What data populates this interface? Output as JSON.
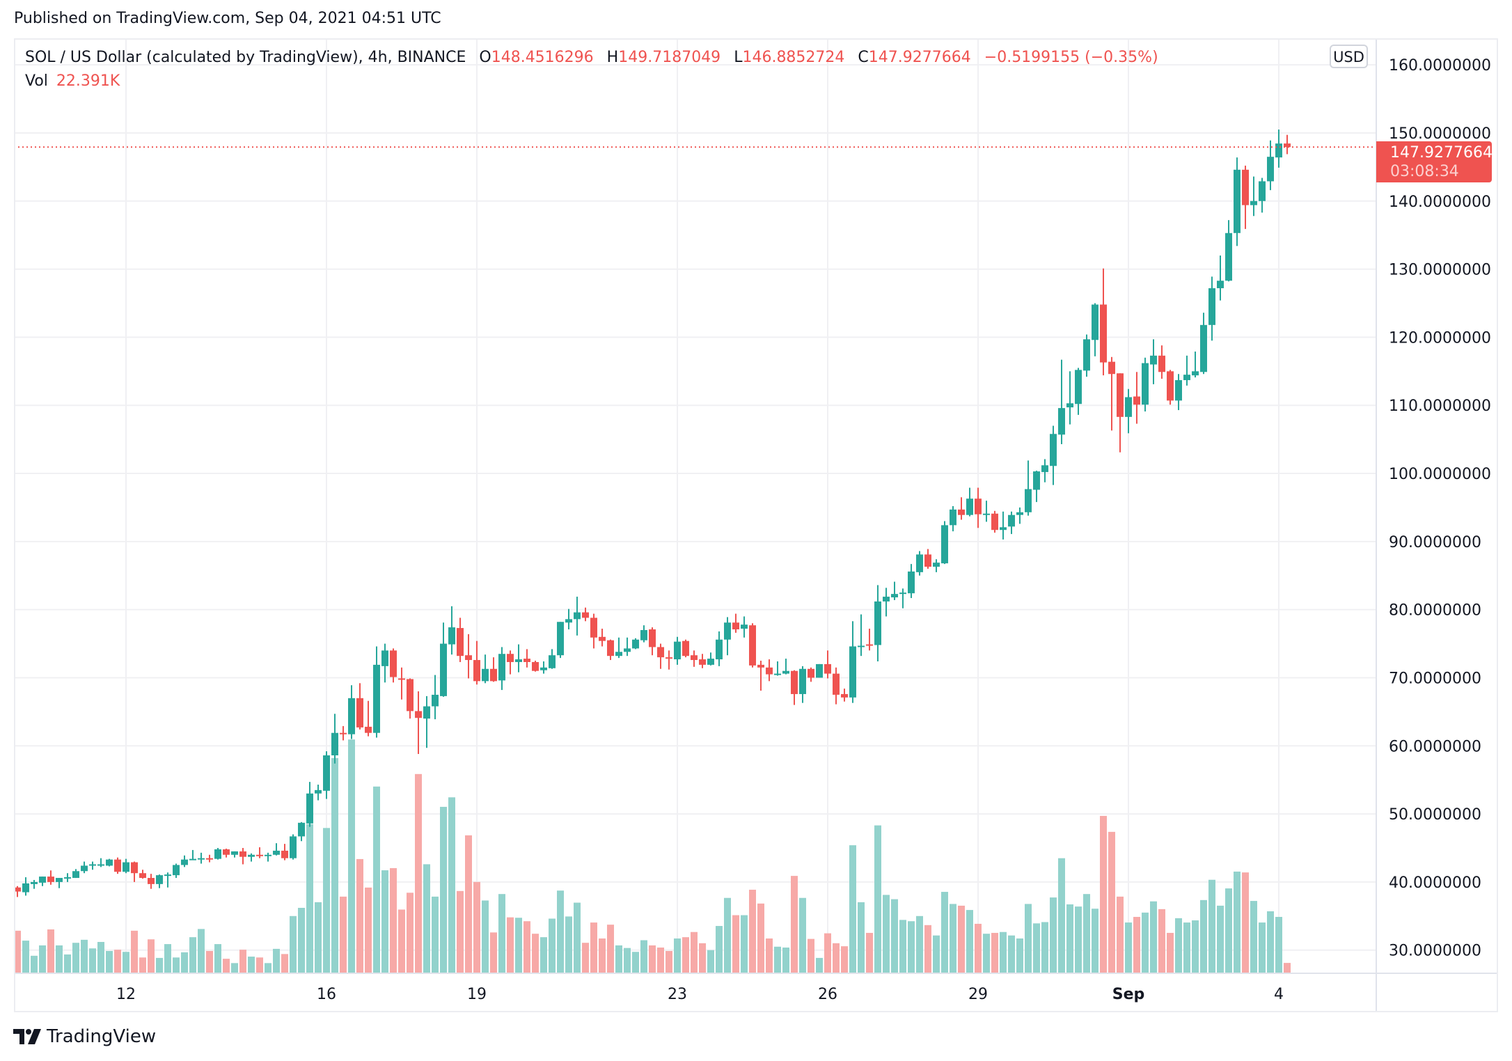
{
  "published": "Published on TradingView.com, Sep 04, 2021 04:51 UTC",
  "legend": {
    "symbol": "SOL / US Dollar (calculated by TradingView), 4h, BINANCE",
    "o_label": "O",
    "o": "148.4516296",
    "h_label": "H",
    "h": "149.7187049",
    "l_label": "L",
    "l": "146.8852724",
    "c_label": "C",
    "c": "147.9277664",
    "change": "−0.5199155 (−0.35%)",
    "vol_label": "Vol",
    "vol": "22.391K"
  },
  "currency_badge": "USD",
  "last_price": {
    "value": "147.9277664",
    "countdown": "03:08:34"
  },
  "logo_text": "TradingView",
  "colors": {
    "up": "#26a69a",
    "down": "#ef5350",
    "vol_up": "#92d2cc",
    "vol_down": "#f7a9a7",
    "grid": "#f0f0f3"
  },
  "chart_data": {
    "type": "candlestick",
    "interval": "4h",
    "first_candle": "2021-08-09T20:00Z",
    "ylim": [
      26.7,
      163.9
    ],
    "grid": true,
    "y_ticks": [
      "30.0000000",
      "40.0000000",
      "50.0000000",
      "60.0000000",
      "70.0000000",
      "80.0000000",
      "90.0000000",
      "100.0000000",
      "110.0000000",
      "120.0000000",
      "130.0000000",
      "140.0000000",
      "150.0000000",
      "160.0000000"
    ],
    "y_tick_values": [
      30,
      40,
      50,
      60,
      70,
      80,
      90,
      100,
      110,
      120,
      130,
      140,
      150,
      160
    ],
    "x_ticks": [
      {
        "label": "12",
        "date": "2021-08-12"
      },
      {
        "label": "16",
        "date": "2021-08-16"
      },
      {
        "label": "19",
        "date": "2021-08-19"
      },
      {
        "label": "23",
        "date": "2021-08-23"
      },
      {
        "label": "26",
        "date": "2021-08-26"
      },
      {
        "label": "29",
        "date": "2021-08-29"
      },
      {
        "label": "Sep",
        "date": "2021-09-01",
        "bold": true
      },
      {
        "label": "4",
        "date": "2021-09-04"
      }
    ],
    "ohlc": [
      [
        39.2,
        39.4,
        37.8,
        38.6
      ],
      [
        38.5,
        40.7,
        38.0,
        39.8
      ],
      [
        39.7,
        40.3,
        39.0,
        40.0
      ],
      [
        39.9,
        40.8,
        39.4,
        40.8
      ],
      [
        40.8,
        41.7,
        39.6,
        40.0
      ],
      [
        40.0,
        40.6,
        39.1,
        40.6
      ],
      [
        40.5,
        41.3,
        40.0,
        40.7
      ],
      [
        40.6,
        41.9,
        40.6,
        41.6
      ],
      [
        41.6,
        43.0,
        41.3,
        42.4
      ],
      [
        42.4,
        43.0,
        41.8,
        42.6
      ],
      [
        42.5,
        43.5,
        42.2,
        42.6
      ],
      [
        42.4,
        43.4,
        42.3,
        43.3
      ],
      [
        43.3,
        43.6,
        41.2,
        41.5
      ],
      [
        41.5,
        43.4,
        41.3,
        42.9
      ],
      [
        42.9,
        43.0,
        40.0,
        41.3
      ],
      [
        41.3,
        41.8,
        40.5,
        40.6
      ],
      [
        40.6,
        41.2,
        39.0,
        39.7
      ],
      [
        39.7,
        41.1,
        39.1,
        41.0
      ],
      [
        41.0,
        41.4,
        39.2,
        41.1
      ],
      [
        41.0,
        42.7,
        40.6,
        42.5
      ],
      [
        42.5,
        43.9,
        42.2,
        43.3
      ],
      [
        43.3,
        44.7,
        43.3,
        43.4
      ],
      [
        43.4,
        44.3,
        42.7,
        43.5
      ],
      [
        43.5,
        44.0,
        42.9,
        43.4
      ],
      [
        43.4,
        45.0,
        43.3,
        44.8
      ],
      [
        44.8,
        44.9,
        43.6,
        44.0
      ],
      [
        44.0,
        44.5,
        43.6,
        44.5
      ],
      [
        44.5,
        45.0,
        42.6,
        43.7
      ],
      [
        43.7,
        44.2,
        43.0,
        44.0
      ],
      [
        44.0,
        45.1,
        43.5,
        43.8
      ],
      [
        43.8,
        44.3,
        43.0,
        44.0
      ],
      [
        44.0,
        45.7,
        43.9,
        44.6
      ],
      [
        44.6,
        45.6,
        43.2,
        43.5
      ],
      [
        43.5,
        47.0,
        43.3,
        46.7
      ],
      [
        46.7,
        48.8,
        46.0,
        48.7
      ],
      [
        48.6,
        54.7,
        48.1,
        53.0
      ],
      [
        53.0,
        54.3,
        52.0,
        53.5
      ],
      [
        53.4,
        59.2,
        52.2,
        58.6
      ],
      [
        58.6,
        64.7,
        57.4,
        61.9
      ],
      [
        61.9,
        62.9,
        60.8,
        61.8
      ],
      [
        61.7,
        68.9,
        61.0,
        67.0
      ],
      [
        67.0,
        69.2,
        62.4,
        62.7
      ],
      [
        62.8,
        66.6,
        61.4,
        61.9
      ],
      [
        61.9,
        74.6,
        61.2,
        71.9
      ],
      [
        71.7,
        75.0,
        69.3,
        74.0
      ],
      [
        74.0,
        74.3,
        69.3,
        70.1
      ],
      [
        69.9,
        71.5,
        66.8,
        69.7
      ],
      [
        69.8,
        69.9,
        64.0,
        65.1
      ],
      [
        65.1,
        68.0,
        58.8,
        64.1
      ],
      [
        64.0,
        67.3,
        59.7,
        65.8
      ],
      [
        65.8,
        70.4,
        63.9,
        67.5
      ],
      [
        67.3,
        78.1,
        67.2,
        75.0
      ],
      [
        74.9,
        80.5,
        73.4,
        77.4
      ],
      [
        77.3,
        78.8,
        72.3,
        73.2
      ],
      [
        73.3,
        76.4,
        69.9,
        72.6
      ],
      [
        72.6,
        75.4,
        69.0,
        69.5
      ],
      [
        69.5,
        73.4,
        69.2,
        71.3
      ],
      [
        71.3,
        73.0,
        69.4,
        69.5
      ],
      [
        69.6,
        74.5,
        68.2,
        73.5
      ],
      [
        73.5,
        74.0,
        70.5,
        72.3
      ],
      [
        72.3,
        74.9,
        70.8,
        72.7
      ],
      [
        72.8,
        74.2,
        71.5,
        72.3
      ],
      [
        72.3,
        72.5,
        70.9,
        71.0
      ],
      [
        71.1,
        72.4,
        70.6,
        71.5
      ],
      [
        71.4,
        74.2,
        71.3,
        73.3
      ],
      [
        73.3,
        78.2,
        72.9,
        78.2
      ],
      [
        78.1,
        80.1,
        77.1,
        78.6
      ],
      [
        78.6,
        81.9,
        76.2,
        79.6
      ],
      [
        79.6,
        80.3,
        78.3,
        78.8
      ],
      [
        78.8,
        79.4,
        74.3,
        75.9
      ],
      [
        76.0,
        77.2,
        74.6,
        75.4
      ],
      [
        75.5,
        75.6,
        72.6,
        73.2
      ],
      [
        73.2,
        75.9,
        72.9,
        73.8
      ],
      [
        73.8,
        75.9,
        73.2,
        74.3
      ],
      [
        74.3,
        75.8,
        74.2,
        75.6
      ],
      [
        75.5,
        77.7,
        75.2,
        77.0
      ],
      [
        77.1,
        77.4,
        73.3,
        74.5
      ],
      [
        74.5,
        75.0,
        71.3,
        73.0
      ],
      [
        73.0,
        74.0,
        71.2,
        72.9
      ],
      [
        72.7,
        76.0,
        71.9,
        75.3
      ],
      [
        75.4,
        75.6,
        73.0,
        73.2
      ],
      [
        73.3,
        74.0,
        71.6,
        72.6
      ],
      [
        72.7,
        73.5,
        71.4,
        71.9
      ],
      [
        71.9,
        73.7,
        71.8,
        72.8
      ],
      [
        72.7,
        76.8,
        71.7,
        75.6
      ],
      [
        75.6,
        78.9,
        73.3,
        78.1
      ],
      [
        78.1,
        79.4,
        76.6,
        77.1
      ],
      [
        77.2,
        79.0,
        75.9,
        77.8
      ],
      [
        77.7,
        78.0,
        71.5,
        71.8
      ],
      [
        71.9,
        72.5,
        68.1,
        71.5
      ],
      [
        71.5,
        72.7,
        69.5,
        70.5
      ],
      [
        70.5,
        72.4,
        70.3,
        70.6
      ],
      [
        70.6,
        72.8,
        70.5,
        71.0
      ],
      [
        71.0,
        71.1,
        66.0,
        67.6
      ],
      [
        67.6,
        71.7,
        66.3,
        71.3
      ],
      [
        71.3,
        71.5,
        69.4,
        70.0
      ],
      [
        70.0,
        72.0,
        70.0,
        72.0
      ],
      [
        72.0,
        74.0,
        69.9,
        70.6
      ],
      [
        70.6,
        71.5,
        66.1,
        67.5
      ],
      [
        67.6,
        68.4,
        66.5,
        67.1
      ],
      [
        67.1,
        78.3,
        66.3,
        74.6
      ],
      [
        74.6,
        79.3,
        73.2,
        74.7
      ],
      [
        74.9,
        77.2,
        74.0,
        74.7
      ],
      [
        74.8,
        83.6,
        72.4,
        81.2
      ],
      [
        81.2,
        83.2,
        79.0,
        81.9
      ],
      [
        81.8,
        84.1,
        81.4,
        82.3
      ],
      [
        82.3,
        83.1,
        80.2,
        82.5
      ],
      [
        82.4,
        86.7,
        81.7,
        85.6
      ],
      [
        85.5,
        88.6,
        85.0,
        88.1
      ],
      [
        88.1,
        88.9,
        86.0,
        86.3
      ],
      [
        86.3,
        87.4,
        85.5,
        86.9
      ],
      [
        86.8,
        93.0,
        86.7,
        92.4
      ],
      [
        92.4,
        95.2,
        91.5,
        94.7
      ],
      [
        94.7,
        96.5,
        93.2,
        93.9
      ],
      [
        93.9,
        97.9,
        93.7,
        96.3
      ],
      [
        96.3,
        97.9,
        92.0,
        94.0
      ],
      [
        94.0,
        96.0,
        92.9,
        94.1
      ],
      [
        94.1,
        94.5,
        91.3,
        91.7
      ],
      [
        91.7,
        94.4,
        90.3,
        92.1
      ],
      [
        92.2,
        94.4,
        91.1,
        93.9
      ],
      [
        93.9,
        95.0,
        92.6,
        94.3
      ],
      [
        94.3,
        101.9,
        93.8,
        97.7
      ],
      [
        97.6,
        100.4,
        95.8,
        100.3
      ],
      [
        100.2,
        102.1,
        98.7,
        101.2
      ],
      [
        101.1,
        107.0,
        98.3,
        105.8
      ],
      [
        105.7,
        116.7,
        104.3,
        109.6
      ],
      [
        109.7,
        115.0,
        107.2,
        110.3
      ],
      [
        110.2,
        115.5,
        108.6,
        115.2
      ],
      [
        115.1,
        120.4,
        114.2,
        119.7
      ],
      [
        119.6,
        125.0,
        117.2,
        124.8
      ],
      [
        124.8,
        130.1,
        114.4,
        116.3
      ],
      [
        116.4,
        117.1,
        106.3,
        114.6
      ],
      [
        114.7,
        114.7,
        103.1,
        108.3
      ],
      [
        108.3,
        112.4,
        105.9,
        111.2
      ],
      [
        111.3,
        114.9,
        107.3,
        110.1
      ],
      [
        110.1,
        117.0,
        109.1,
        116.2
      ],
      [
        116.0,
        119.7,
        113.1,
        117.3
      ],
      [
        117.3,
        118.8,
        113.9,
        114.9
      ],
      [
        115.0,
        115.2,
        110.1,
        110.7
      ],
      [
        110.7,
        114.6,
        109.3,
        113.7
      ],
      [
        113.7,
        117.3,
        112.9,
        114.5
      ],
      [
        114.4,
        117.9,
        114.1,
        115.0
      ],
      [
        114.9,
        123.6,
        114.6,
        121.8
      ],
      [
        121.8,
        128.9,
        119.5,
        127.2
      ],
      [
        127.2,
        132.0,
        125.4,
        128.3
      ],
      [
        128.3,
        137.2,
        128.2,
        135.3
      ],
      [
        135.3,
        146.4,
        133.4,
        144.6
      ],
      [
        144.6,
        145.2,
        135.9,
        139.4
      ],
      [
        139.4,
        143.6,
        137.8,
        140.0
      ],
      [
        140.0,
        143.4,
        138.3,
        142.9
      ],
      [
        142.9,
        148.9,
        141.6,
        146.5
      ],
      [
        146.4,
        150.5,
        144.9,
        148.45
      ],
      [
        148.4516296,
        149.7187049,
        146.8852724,
        147.9277664
      ]
    ],
    "volume_k": [
      97,
      74,
      39,
      63,
      100,
      63,
      42,
      69,
      76,
      56,
      71,
      50,
      53,
      48,
      97,
      35,
      77,
      34,
      66,
      35,
      47,
      82,
      101,
      50,
      66,
      32,
      22,
      53,
      37,
      35,
      22,
      55,
      43,
      131,
      150,
      344,
      163,
      335,
      497,
      176,
      540,
      263,
      197,
      431,
      237,
      242,
      146,
      185,
      460,
      251,
      176,
      384,
      406,
      189,
      318,
      210,
      167,
      93,
      182,
      128,
      127,
      119,
      90,
      82,
      125,
      190,
      130,
      162,
      69,
      116,
      79,
      111,
      63,
      57,
      48,
      75,
      63,
      58,
      50,
      79,
      82,
      94,
      68,
      52,
      108,
      173,
      133,
      133,
      192,
      160,
      79,
      60,
      58,
      224,
      173,
      78,
      34,
      91,
      68,
      61,
      295,
      163,
      92,
      341,
      180,
      170,
      122,
      119,
      131,
      110,
      86,
      187,
      159,
      155,
      145,
      113,
      90,
      92,
      94,
      86,
      79,
      159,
      114,
      117,
      174,
      265,
      158,
      153,
      182,
      148,
      363,
      326,
      176,
      116,
      129,
      139,
      165,
      147,
      92,
      126,
      116,
      121,
      168,
      215,
      155,
      195,
      234,
      232,
      166,
      116,
      142,
      129,
      22.391
    ],
    "last_price": 147.9277664
  }
}
